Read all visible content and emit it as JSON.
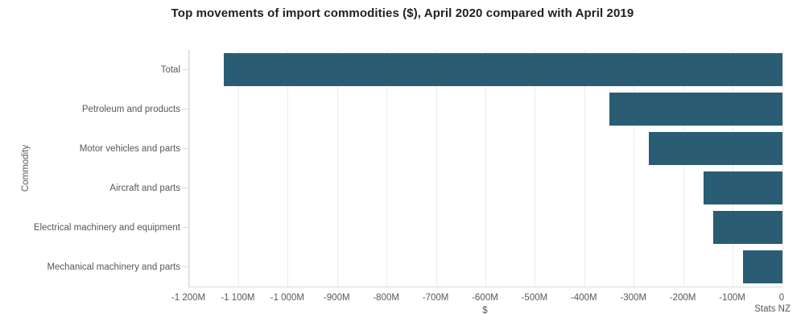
{
  "title": "Top movements of import commodities ($), April 2020 compared with April 2019",
  "source": "Stats NZ",
  "colors": {
    "bar": "#2a5c74",
    "gridline": "#e9ebec",
    "axis_line": "#d8dbdd",
    "label_text": "#56585c",
    "title_text": "#202124",
    "background": "#ffffff"
  },
  "chart_data": {
    "type": "bar",
    "orientation": "horizontal",
    "title": "Top movements of import commodities ($), April 2020 compared with April 2019",
    "xlabel": "$",
    "ylabel": "Commodity",
    "categories": [
      "Total",
      "Petroleum and products",
      "Motor vehicles and parts",
      "Aircraft and parts",
      "Electrical machinery and equipment",
      "Mechanical machinery and parts"
    ],
    "values": [
      -1130,
      -350,
      -270,
      -160,
      -140,
      -80
    ],
    "unit": "M",
    "xlim": [
      -1200,
      0
    ],
    "xticks": [
      -1200,
      -1100,
      -1000,
      -900,
      -800,
      -700,
      -600,
      -500,
      -400,
      -300,
      -200,
      -100,
      0
    ],
    "xtick_labels": [
      "-1 200M",
      "-1 100M",
      "-1 000M",
      "-900M",
      "-800M",
      "-700M",
      "-600M",
      "-500M",
      "-400M",
      "-300M",
      "-200M",
      "-100M",
      "0"
    ],
    "grid": true,
    "legend": "none",
    "bar_color": "#2a5c74"
  }
}
